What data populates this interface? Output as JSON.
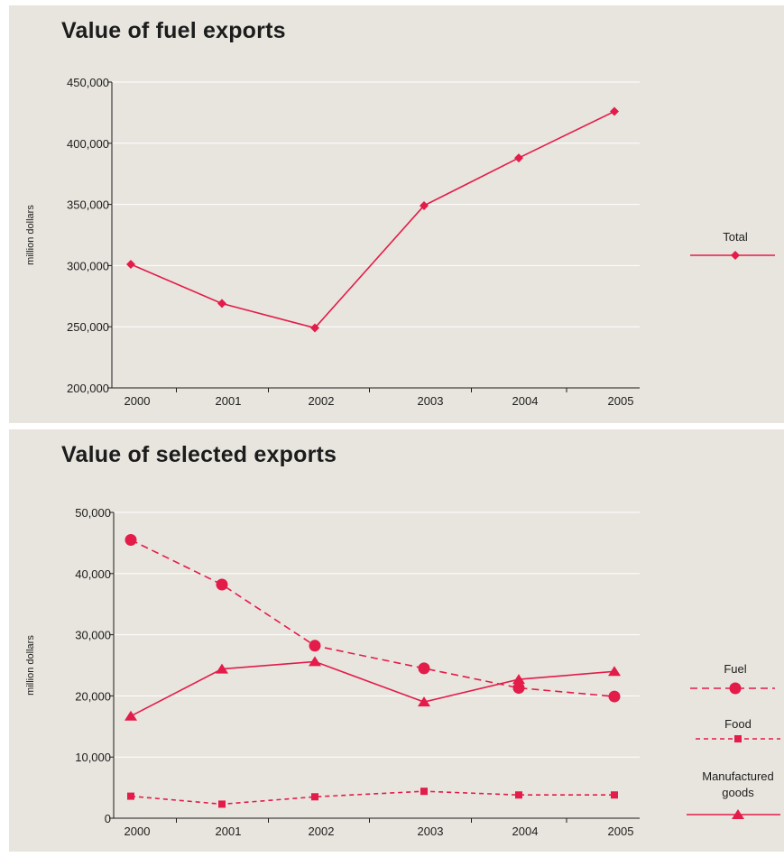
{
  "colors": {
    "series": "#e31c4a",
    "grid": "#ffffff",
    "axis": "#1c1c1c",
    "background": "#e8e5de"
  },
  "chart_data": [
    {
      "type": "line",
      "title": "Value of fuel exports",
      "xlabel": "",
      "ylabel": "million dollars",
      "x": [
        "2000",
        "2001",
        "2002",
        "2003",
        "2004",
        "2005"
      ],
      "ylim": [
        200000,
        450000
      ],
      "yticks": [
        200000,
        250000,
        300000,
        350000,
        400000,
        450000
      ],
      "ytick_labels": [
        "200,000",
        "250,000",
        "300,000",
        "350,000",
        "400,000",
        "450,000"
      ],
      "grid": true,
      "legend_position": "right",
      "series": [
        {
          "name": "Total",
          "values": [
            301000,
            269000,
            249000,
            349000,
            388000,
            426000
          ],
          "marker": "diamond",
          "line": "solid"
        }
      ]
    },
    {
      "type": "line",
      "title": "Value of selected exports",
      "xlabel": "",
      "ylabel": "million dollars",
      "x": [
        "2000",
        "2001",
        "2002",
        "2003",
        "2004",
        "2005"
      ],
      "ylim": [
        0,
        50000
      ],
      "yticks": [
        0,
        10000,
        20000,
        30000,
        40000,
        50000
      ],
      "ytick_labels": [
        "0",
        "10,000",
        "20,000",
        "30,000",
        "40,000",
        "50,000"
      ],
      "grid": true,
      "legend_position": "right",
      "series": [
        {
          "name": "Fuel",
          "values": [
            45500,
            38200,
            28200,
            24500,
            21300,
            19900
          ],
          "marker": "circle",
          "line": "dashed"
        },
        {
          "name": "Food",
          "values": [
            3600,
            2300,
            3500,
            4400,
            3800,
            3800
          ],
          "marker": "square",
          "line": "dotted"
        },
        {
          "name": "Manufactured goods",
          "name_lines": [
            "Manufactured",
            "goods"
          ],
          "values": [
            16700,
            24400,
            25600,
            19000,
            22700,
            24000
          ],
          "marker": "triangle",
          "line": "solid"
        }
      ]
    }
  ]
}
